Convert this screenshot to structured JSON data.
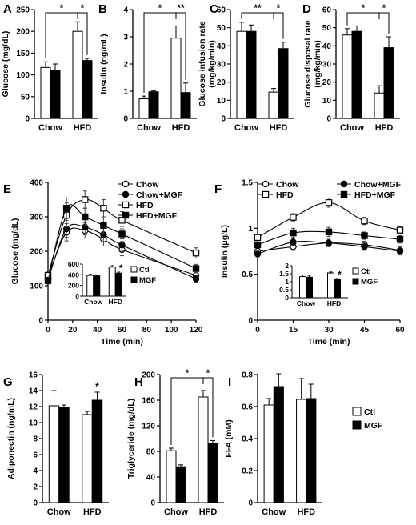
{
  "chart_data": [
    {
      "panel": "A",
      "type": "bar",
      "ylabel": "Glucose (mg/dL)",
      "categories": [
        "Chow",
        "HFD"
      ],
      "series": [
        {
          "name": "Ctl",
          "values": [
            117,
            200
          ],
          "errors": [
            13,
            22
          ]
        },
        {
          "name": "MGF",
          "values": [
            110,
            133
          ],
          "errors": [
            15,
            5
          ]
        }
      ],
      "ylim": [
        0,
        250
      ],
      "yticks": [
        0,
        50,
        100,
        150,
        200,
        250
      ],
      "significance": [
        {
          "label": "*",
          "between": "Chow Ctl vs HFD Ctl"
        },
        {
          "label": "*",
          "between": "HFD Ctl vs HFD MGF"
        }
      ]
    },
    {
      "panel": "B",
      "type": "bar",
      "ylabel": "Insulin (ng/mL)",
      "categories": [
        "Chow",
        "HFD"
      ],
      "series": [
        {
          "name": "Ctl",
          "values": [
            0.72,
            2.95
          ],
          "errors": [
            0.1,
            0.45
          ]
        },
        {
          "name": "MGF",
          "values": [
            0.98,
            0.95
          ],
          "errors": [
            0.04,
            0.35
          ]
        }
      ],
      "ylim": [
        0,
        4
      ],
      "yticks": [
        0,
        1,
        2,
        3,
        4
      ],
      "significance": [
        {
          "label": "*",
          "between": "Chow Ctl vs HFD Ctl"
        },
        {
          "label": "**",
          "between": "HFD Ctl vs HFD MGF"
        }
      ]
    },
    {
      "panel": "C",
      "type": "bar",
      "ylabel": "Glucose infusion rate (mg/kg/min)",
      "categories": [
        "Chow",
        "HFD"
      ],
      "series": [
        {
          "name": "Ctl",
          "values": [
            48,
            14.5
          ],
          "errors": [
            5,
            2
          ]
        },
        {
          "name": "MGF",
          "values": [
            48,
            38.5
          ],
          "errors": [
            3.5,
            3.5
          ]
        }
      ],
      "ylim": [
        0,
        60
      ],
      "yticks": [
        0,
        10,
        20,
        30,
        40,
        50,
        60
      ],
      "significance": [
        {
          "label": "**",
          "between": "Chow Ctl vs HFD Ctl"
        },
        {
          "label": "*",
          "between": "HFD Ctl vs HFD MGF"
        }
      ]
    },
    {
      "panel": "D",
      "type": "bar",
      "ylabel": "Glucose disposal rate (mg/kg/min)",
      "categories": [
        "Chow",
        "HFD"
      ],
      "series": [
        {
          "name": "Ctl",
          "values": [
            46,
            14
          ],
          "errors": [
            3.5,
            4
          ]
        },
        {
          "name": "MGF",
          "values": [
            48,
            39
          ],
          "errors": [
            3,
            6
          ]
        }
      ],
      "ylim": [
        0,
        60
      ],
      "yticks": [
        0,
        10,
        20,
        30,
        40,
        50,
        60
      ],
      "significance": [
        {
          "label": "*",
          "between": "Chow Ctl vs HFD Ctl"
        },
        {
          "label": "*",
          "between": "HFD Ctl vs HFD MGF"
        }
      ]
    },
    {
      "panel": "E",
      "type": "line",
      "xlabel": "Time (min)",
      "ylabel": "Glucose (mg/dL)",
      "x": [
        0,
        15,
        30,
        45,
        60,
        120
      ],
      "series": [
        {
          "name": "Chow",
          "marker": "open-circle",
          "values": [
            125,
            255,
            260,
            235,
            205,
            130
          ],
          "errors": [
            8,
            25,
            22,
            20,
            18,
            12
          ]
        },
        {
          "name": "Chow+MGF",
          "marker": "filled-circle",
          "values": [
            118,
            265,
            270,
            248,
            218,
            120
          ],
          "errors": [
            8,
            25,
            22,
            20,
            18,
            10
          ]
        },
        {
          "name": "HFD",
          "marker": "open-square",
          "values": [
            130,
            305,
            350,
            325,
            290,
            195
          ],
          "errors": [
            10,
            35,
            25,
            25,
            25,
            15
          ]
        },
        {
          "name": "HFD+MGF",
          "marker": "filled-square",
          "values": [
            115,
            325,
            300,
            275,
            250,
            150
          ],
          "errors": [
            10,
            30,
            25,
            25,
            22,
            12
          ]
        }
      ],
      "xlim": [
        0,
        120
      ],
      "xticks": [
        0,
        20,
        40,
        60,
        80,
        100,
        120
      ],
      "ylim": [
        0,
        400
      ],
      "yticks": [
        0,
        100,
        200,
        300,
        400
      ],
      "inset": {
        "type": "bar",
        "categories": [
          "Chow",
          "HFD"
        ],
        "series": [
          {
            "name": "Ctl",
            "values": [
              390,
              545
            ],
            "errors": [
              20,
              25
            ]
          },
          {
            "name": "MGF",
            "values": [
              380,
              430
            ],
            "errors": [
              20,
              20
            ]
          }
        ],
        "ylim": [
          0,
          600
        ],
        "yticks": [
          0,
          200,
          400,
          600
        ],
        "significance": [
          {
            "label": "*",
            "between": "HFD Ctl vs HFD MGF"
          }
        ]
      }
    },
    {
      "panel": "F",
      "type": "line",
      "xlabel": "Time (min)",
      "ylabel": "Insulin (μg/L)",
      "x": [
        0,
        15,
        30,
        45,
        60
      ],
      "series": [
        {
          "name": "Chow",
          "marker": "open-circle",
          "values": [
            0.75,
            0.8,
            0.84,
            0.82,
            0.76
          ],
          "errors": [
            0.03,
            0.04,
            0.04,
            0.04,
            0.04
          ]
        },
        {
          "name": "Chow+MGF",
          "marker": "filled-circle",
          "values": [
            0.72,
            0.85,
            0.84,
            0.8,
            0.75
          ],
          "errors": [
            0.03,
            0.04,
            0.04,
            0.04,
            0.04
          ]
        },
        {
          "name": "HFD",
          "marker": "open-square",
          "values": [
            0.9,
            1.12,
            1.28,
            1.08,
            0.98
          ],
          "errors": [
            0.03,
            0.04,
            0.05,
            0.04,
            0.04
          ]
        },
        {
          "name": "HFD+MGF",
          "marker": "filled-square",
          "values": [
            0.82,
            0.95,
            0.96,
            0.92,
            0.88
          ],
          "errors": [
            0.03,
            0.05,
            0.05,
            0.04,
            0.04
          ]
        }
      ],
      "xlim": [
        0,
        60
      ],
      "xticks": [
        0,
        15,
        30,
        45,
        60
      ],
      "ylim": [
        0,
        1.5
      ],
      "yticks": [
        0,
        0.5,
        1,
        1.5
      ],
      "inset": {
        "type": "bar",
        "categories": [
          "Chow",
          "HFD"
        ],
        "series": [
          {
            "name": "Ctl",
            "values": [
              1.32,
              1.55
            ],
            "errors": [
              0.1,
              0.06
            ]
          },
          {
            "name": "MGF",
            "values": [
              1.28,
              1.15
            ],
            "errors": [
              0.08,
              0.05
            ]
          }
        ],
        "ylim": [
          0,
          2
        ],
        "yticks": [
          0,
          0.5,
          1,
          1.5,
          2
        ],
        "significance": [
          {
            "label": "*",
            "between": "HFD Ctl vs HFD MGF"
          }
        ]
      }
    },
    {
      "panel": "G",
      "type": "bar",
      "ylabel": "Adiponectin (ng/mL)",
      "categories": [
        "Chow",
        "HFD"
      ],
      "series": [
        {
          "name": "Ctl",
          "values": [
            12.1,
            11.0
          ],
          "errors": [
            1.9,
            0.4
          ]
        },
        {
          "name": "MGF",
          "values": [
            11.9,
            12.8
          ],
          "errors": [
            0.3,
            1.0
          ]
        }
      ],
      "ylim": [
        0,
        16
      ],
      "yticks": [
        0,
        2,
        4,
        6,
        8,
        10,
        12,
        14,
        16
      ],
      "significance": [
        {
          "label": "*",
          "between": "HFD MGF"
        }
      ]
    },
    {
      "panel": "H",
      "type": "bar",
      "ylabel": "Triglyceride (mg/dL)",
      "categories": [
        "Chow",
        "HFD"
      ],
      "series": [
        {
          "name": "Ctl",
          "values": [
            81,
            165
          ],
          "errors": [
            4,
            10
          ]
        },
        {
          "name": "MGF",
          "values": [
            56,
            93
          ],
          "errors": [
            3,
            4
          ]
        }
      ],
      "ylim": [
        0,
        200
      ],
      "yticks": [
        0,
        40,
        80,
        120,
        160,
        200
      ],
      "significance": [
        {
          "label": "*",
          "between": "Chow Ctl vs HFD Ctl"
        },
        {
          "label": "*",
          "between": "HFD Ctl vs HFD MGF"
        }
      ]
    },
    {
      "panel": "I",
      "type": "bar",
      "ylabel": "FFA (mM)",
      "categories": [
        "Chow",
        "HFD"
      ],
      "series": [
        {
          "name": "Ctl",
          "values": [
            0.61,
            0.645
          ],
          "errors": [
            0.04,
            0.13
          ]
        },
        {
          "name": "MGF",
          "values": [
            0.725,
            0.65
          ],
          "errors": [
            0.08,
            0.09
          ]
        }
      ],
      "ylim": [
        0,
        0.8
      ],
      "yticks": [
        0,
        0.2,
        0.4,
        0.6,
        0.8
      ],
      "legend": [
        "Ctl",
        "MGF"
      ]
    }
  ]
}
